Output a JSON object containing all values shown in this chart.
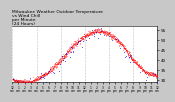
{
  "title": "Milwaukee Weather Outdoor Temperature\nvs Wind Chill\nper Minute\n(24 Hours)",
  "title_fontsize": 3.2,
  "bg_color": "#ffffff",
  "outer_bg": "#c8c8c8",
  "temp_color": "#ff0000",
  "windchill_color": "#0000ff",
  "ylim": [
    29,
    57
  ],
  "yticks": [
    30,
    35,
    40,
    45,
    50,
    55
  ],
  "ylabel_fontsize": 3.0,
  "xlabel_fontsize": 2.2,
  "grid_color": "#888888",
  "marker_size": 0.7,
  "wc_marker_size": 1.0
}
